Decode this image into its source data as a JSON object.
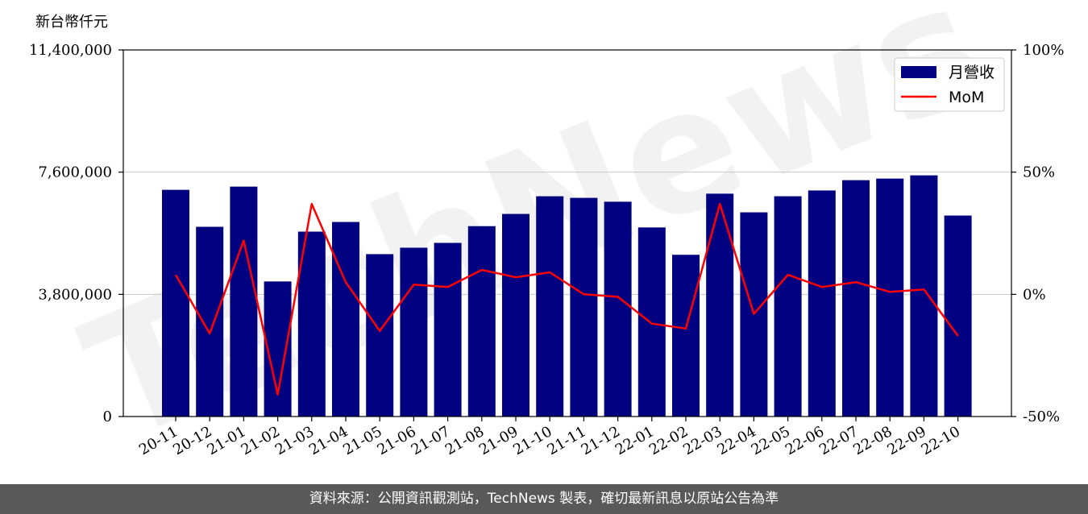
{
  "chart_data": {
    "type": "bar",
    "ylabel_left_unit": "新台幣仟元",
    "categories": [
      "20-11",
      "20-12",
      "21-01",
      "21-02",
      "21-03",
      "21-04",
      "21-05",
      "21-06",
      "21-07",
      "21-08",
      "21-09",
      "21-10",
      "21-11",
      "21-12",
      "22-01",
      "22-02",
      "22-03",
      "22-04",
      "22-05",
      "22-06",
      "22-07",
      "22-08",
      "22-09",
      "22-10"
    ],
    "series": [
      {
        "name": "月營收",
        "kind": "bar",
        "axis": "left",
        "color": "#000080",
        "values": [
          7050000,
          5900000,
          7150000,
          4200000,
          5750000,
          6050000,
          5050000,
          5250000,
          5400000,
          5920000,
          6300000,
          6850000,
          6800000,
          6680000,
          5880000,
          5030000,
          6930000,
          6350000,
          6850000,
          7030000,
          7350000,
          7400000,
          7500000,
          6250000
        ]
      },
      {
        "name": "MoM",
        "kind": "line",
        "axis": "right",
        "color": "#ff0000",
        "values": [
          8,
          -16,
          22,
          -41,
          37,
          5,
          -15,
          4,
          3,
          10,
          7,
          9,
          0,
          -1,
          -12,
          -14,
          37,
          -8,
          8,
          3,
          5,
          1,
          2,
          -17
        ]
      }
    ],
    "y_left": {
      "min": 0,
      "max": 11400000,
      "ticks": [
        "0",
        "3,800,000",
        "7,600,000",
        "11,400,000"
      ],
      "tick_values": [
        0,
        3800000,
        7600000,
        11400000
      ]
    },
    "y_right": {
      "min": -50,
      "max": 100,
      "ticks": [
        "-50%",
        "0%",
        "50%",
        "100%"
      ],
      "tick_values": [
        -50,
        0,
        50,
        100
      ]
    },
    "grid": "horizontal",
    "legend_position": "top-right",
    "watermark": "TechNews"
  },
  "footer": {
    "text": "資料來源：公開資訊觀測站，TechNews 製表，確切最新訊息以原站公告為準"
  }
}
